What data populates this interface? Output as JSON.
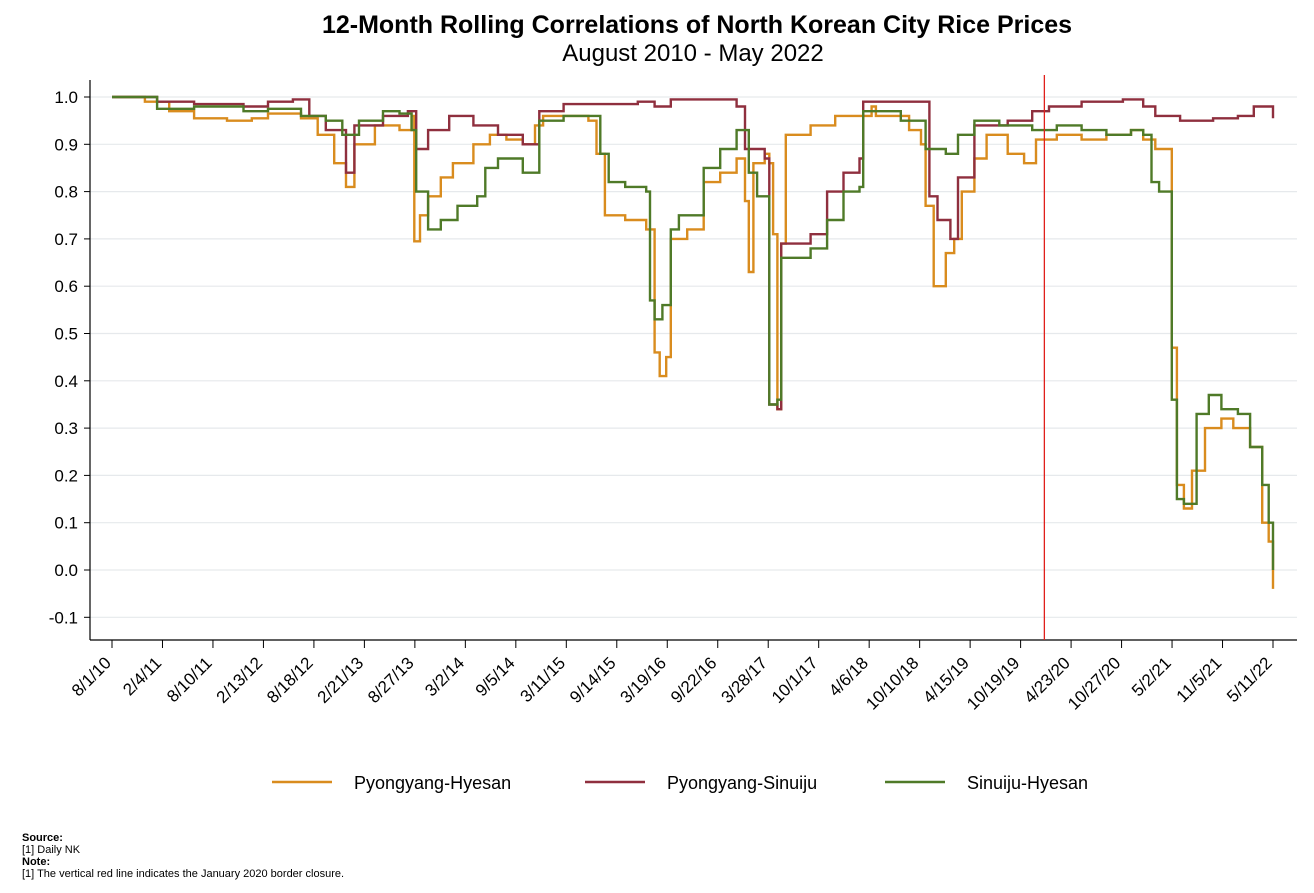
{
  "chart_data": {
    "type": "line",
    "title": "12-Month Rolling Correlations of North Korean City Rice Prices",
    "subtitle": "August 2010 - May 2022",
    "ylim": [
      -0.15,
      1.05
    ],
    "y_ticks": [
      "1.0",
      "0.9",
      "0.8",
      "0.7",
      "0.6",
      "0.5",
      "0.4",
      "0.3",
      "0.2",
      "0.1",
      "0.0",
      "-0.1"
    ],
    "y_tick_values": [
      1.0,
      0.9,
      0.8,
      0.7,
      0.6,
      0.5,
      0.4,
      0.3,
      0.2,
      0.1,
      0.0,
      -0.1
    ],
    "x_range": [
      "2010-07-15",
      "2022-07-01"
    ],
    "x_tick_labels": [
      "8/1/10",
      "2/4/11",
      "8/10/11",
      "2/13/12",
      "8/18/12",
      "2/21/13",
      "8/27/13",
      "3/2/14",
      "9/5/14",
      "3/11/15",
      "9/14/15",
      "3/19/16",
      "9/22/16",
      "3/28/17",
      "10/1/17",
      "4/6/18",
      "10/10/18",
      "4/15/19",
      "10/19/19",
      "4/23/20",
      "10/27/20",
      "5/2/21",
      "11/5/21",
      "5/11/22"
    ],
    "x_tick_dates": [
      "2010-08-01",
      "2011-02-04",
      "2011-08-10",
      "2012-02-13",
      "2012-08-18",
      "2013-02-21",
      "2013-08-27",
      "2014-03-02",
      "2014-09-05",
      "2015-03-11",
      "2015-09-14",
      "2016-03-19",
      "2016-09-22",
      "2017-03-28",
      "2017-10-01",
      "2018-04-06",
      "2018-10-10",
      "2019-04-15",
      "2019-10-19",
      "2020-04-23",
      "2020-10-27",
      "2021-05-02",
      "2021-11-05",
      "2022-05-11"
    ],
    "grid": true,
    "legend_position": "bottom",
    "vline": {
      "date": "2020-01-15",
      "color": "#e0201b"
    },
    "series": [
      {
        "name": "Pyongyang-Hyesan",
        "color": "#d98c1e",
        "points": [
          [
            "2010-08-01",
            1.0
          ],
          [
            "2010-12-01",
            0.99
          ],
          [
            "2011-03-01",
            0.97
          ],
          [
            "2011-06-01",
            0.955
          ],
          [
            "2011-10-01",
            0.95
          ],
          [
            "2012-01-01",
            0.955
          ],
          [
            "2012-03-01",
            0.965
          ],
          [
            "2012-07-01",
            0.955
          ],
          [
            "2012-09-01",
            0.92
          ],
          [
            "2012-11-01",
            0.86
          ],
          [
            "2012-12-15",
            0.81
          ],
          [
            "2013-01-15",
            0.9
          ],
          [
            "2013-04-01",
            0.94
          ],
          [
            "2013-07-01",
            0.93
          ],
          [
            "2013-08-15",
            0.96
          ],
          [
            "2013-08-25",
            0.695
          ],
          [
            "2013-09-15",
            0.75
          ],
          [
            "2013-10-15",
            0.79
          ],
          [
            "2013-12-01",
            0.83
          ],
          [
            "2014-01-15",
            0.86
          ],
          [
            "2014-04-01",
            0.9
          ],
          [
            "2014-06-01",
            0.92
          ],
          [
            "2014-08-01",
            0.91
          ],
          [
            "2014-10-01",
            0.9
          ],
          [
            "2014-11-15",
            0.94
          ],
          [
            "2014-12-15",
            0.96
          ],
          [
            "2015-03-01",
            0.96
          ],
          [
            "2015-06-01",
            0.95
          ],
          [
            "2015-07-01",
            0.88
          ],
          [
            "2015-08-01",
            0.75
          ],
          [
            "2015-10-15",
            0.74
          ],
          [
            "2016-01-01",
            0.72
          ],
          [
            "2016-02-01",
            0.46
          ],
          [
            "2016-02-20",
            0.41
          ],
          [
            "2016-03-15",
            0.45
          ],
          [
            "2016-04-01",
            0.7
          ],
          [
            "2016-06-01",
            0.72
          ],
          [
            "2016-08-01",
            0.82
          ],
          [
            "2016-10-01",
            0.84
          ],
          [
            "2016-12-01",
            0.87
          ],
          [
            "2017-01-01",
            0.78
          ],
          [
            "2017-01-15",
            0.63
          ],
          [
            "2017-02-01",
            0.86
          ],
          [
            "2017-03-15",
            0.88
          ],
          [
            "2017-04-01",
            0.86
          ],
          [
            "2017-04-15",
            0.71
          ],
          [
            "2017-05-01",
            0.34
          ],
          [
            "2017-05-15",
            0.69
          ],
          [
            "2017-06-01",
            0.92
          ],
          [
            "2017-09-01",
            0.94
          ],
          [
            "2017-12-01",
            0.96
          ],
          [
            "2018-04-15",
            0.98
          ],
          [
            "2018-05-01",
            0.96
          ],
          [
            "2018-09-01",
            0.93
          ],
          [
            "2018-10-15",
            0.9
          ],
          [
            "2018-11-01",
            0.77
          ],
          [
            "2018-12-01",
            0.6
          ],
          [
            "2019-01-15",
            0.67
          ],
          [
            "2019-02-15",
            0.7
          ],
          [
            "2019-03-15",
            0.8
          ],
          [
            "2019-05-01",
            0.87
          ],
          [
            "2019-06-15",
            0.92
          ],
          [
            "2019-09-01",
            0.88
          ],
          [
            "2019-11-01",
            0.86
          ],
          [
            "2019-12-15",
            0.91
          ],
          [
            "2020-03-01",
            0.92
          ],
          [
            "2020-06-01",
            0.91
          ],
          [
            "2020-09-01",
            0.92
          ],
          [
            "2020-12-01",
            0.93
          ],
          [
            "2021-01-15",
            0.91
          ],
          [
            "2021-03-01",
            0.89
          ],
          [
            "2021-04-15",
            0.89
          ],
          [
            "2021-05-01",
            0.47
          ],
          [
            "2021-05-20",
            0.18
          ],
          [
            "2021-06-15",
            0.13
          ],
          [
            "2021-07-15",
            0.21
          ],
          [
            "2021-09-01",
            0.3
          ],
          [
            "2021-11-01",
            0.32
          ],
          [
            "2021-12-15",
            0.3
          ],
          [
            "2022-02-15",
            0.26
          ],
          [
            "2022-04-01",
            0.1
          ],
          [
            "2022-04-25",
            0.06
          ],
          [
            "2022-05-11",
            -0.04
          ]
        ]
      },
      {
        "name": "Pyongyang-Sinuiju",
        "color": "#8f2f3e",
        "points": [
          [
            "2010-08-01",
            1.0
          ],
          [
            "2011-01-15",
            0.99
          ],
          [
            "2011-06-01",
            0.985
          ],
          [
            "2011-12-01",
            0.98
          ],
          [
            "2012-03-01",
            0.99
          ],
          [
            "2012-06-01",
            0.995
          ],
          [
            "2012-08-01",
            0.96
          ],
          [
            "2012-10-01",
            0.93
          ],
          [
            "2012-12-15",
            0.84
          ],
          [
            "2013-01-15",
            0.94
          ],
          [
            "2013-05-01",
            0.96
          ],
          [
            "2013-08-01",
            0.97
          ],
          [
            "2013-09-01",
            0.89
          ],
          [
            "2013-10-15",
            0.93
          ],
          [
            "2014-01-01",
            0.96
          ],
          [
            "2014-04-01",
            0.94
          ],
          [
            "2014-07-01",
            0.92
          ],
          [
            "2014-10-01",
            0.9
          ],
          [
            "2014-12-01",
            0.97
          ],
          [
            "2015-03-01",
            0.985
          ],
          [
            "2015-09-01",
            0.985
          ],
          [
            "2015-12-01",
            0.99
          ],
          [
            "2016-02-01",
            0.98
          ],
          [
            "2016-04-01",
            0.995
          ],
          [
            "2016-08-01",
            0.995
          ],
          [
            "2016-12-01",
            0.98
          ],
          [
            "2017-01-01",
            0.89
          ],
          [
            "2017-03-15",
            0.87
          ],
          [
            "2017-04-01",
            0.35
          ],
          [
            "2017-05-01",
            0.34
          ],
          [
            "2017-05-15",
            0.69
          ],
          [
            "2017-09-01",
            0.71
          ],
          [
            "2017-11-01",
            0.8
          ],
          [
            "2018-01-01",
            0.84
          ],
          [
            "2018-03-01",
            0.87
          ],
          [
            "2018-03-15",
            0.99
          ],
          [
            "2018-08-01",
            0.99
          ],
          [
            "2018-11-01",
            0.99
          ],
          [
            "2018-11-15",
            0.79
          ],
          [
            "2018-12-15",
            0.74
          ],
          [
            "2019-02-01",
            0.7
          ],
          [
            "2019-03-01",
            0.83
          ],
          [
            "2019-05-01",
            0.94
          ],
          [
            "2019-09-01",
            0.95
          ],
          [
            "2019-12-01",
            0.97
          ],
          [
            "2020-02-01",
            0.98
          ],
          [
            "2020-06-01",
            0.99
          ],
          [
            "2020-11-01",
            0.995
          ],
          [
            "2021-01-15",
            0.98
          ],
          [
            "2021-03-01",
            0.96
          ],
          [
            "2021-06-01",
            0.95
          ],
          [
            "2021-10-01",
            0.955
          ],
          [
            "2022-01-01",
            0.96
          ],
          [
            "2022-03-01",
            0.98
          ],
          [
            "2022-05-11",
            0.955
          ]
        ]
      },
      {
        "name": "Sinuiju-Hyesan",
        "color": "#4f7a28",
        "points": [
          [
            "2010-08-01",
            1.0
          ],
          [
            "2011-01-15",
            0.975
          ],
          [
            "2011-06-01",
            0.98
          ],
          [
            "2011-12-01",
            0.97
          ],
          [
            "2012-03-01",
            0.975
          ],
          [
            "2012-07-01",
            0.96
          ],
          [
            "2012-10-01",
            0.95
          ],
          [
            "2012-12-01",
            0.92
          ],
          [
            "2013-02-01",
            0.95
          ],
          [
            "2013-05-01",
            0.97
          ],
          [
            "2013-07-01",
            0.965
          ],
          [
            "2013-08-15",
            0.93
          ],
          [
            "2013-09-01",
            0.8
          ],
          [
            "2013-10-15",
            0.72
          ],
          [
            "2013-12-01",
            0.74
          ],
          [
            "2014-02-01",
            0.77
          ],
          [
            "2014-04-15",
            0.79
          ],
          [
            "2014-05-15",
            0.85
          ],
          [
            "2014-07-01",
            0.87
          ],
          [
            "2014-10-01",
            0.84
          ],
          [
            "2014-12-01",
            0.95
          ],
          [
            "2015-03-01",
            0.96
          ],
          [
            "2015-06-01",
            0.96
          ],
          [
            "2015-07-15",
            0.88
          ],
          [
            "2015-08-15",
            0.82
          ],
          [
            "2015-10-15",
            0.81
          ],
          [
            "2016-01-01",
            0.8
          ],
          [
            "2016-01-15",
            0.57
          ],
          [
            "2016-02-01",
            0.53
          ],
          [
            "2016-03-01",
            0.56
          ],
          [
            "2016-04-01",
            0.72
          ],
          [
            "2016-05-01",
            0.75
          ],
          [
            "2016-08-01",
            0.85
          ],
          [
            "2016-10-01",
            0.89
          ],
          [
            "2016-12-01",
            0.93
          ],
          [
            "2017-01-15",
            0.84
          ],
          [
            "2017-02-15",
            0.79
          ],
          [
            "2017-04-01",
            0.35
          ],
          [
            "2017-05-01",
            0.36
          ],
          [
            "2017-05-15",
            0.66
          ],
          [
            "2017-09-01",
            0.68
          ],
          [
            "2017-11-01",
            0.74
          ],
          [
            "2018-01-01",
            0.8
          ],
          [
            "2018-03-01",
            0.81
          ],
          [
            "2018-03-15",
            0.97
          ],
          [
            "2018-08-01",
            0.95
          ],
          [
            "2018-10-15",
            0.95
          ],
          [
            "2018-11-01",
            0.89
          ],
          [
            "2019-01-15",
            0.88
          ],
          [
            "2019-03-01",
            0.92
          ],
          [
            "2019-05-01",
            0.95
          ],
          [
            "2019-08-01",
            0.94
          ],
          [
            "2019-12-01",
            0.93
          ],
          [
            "2020-03-01",
            0.94
          ],
          [
            "2020-06-01",
            0.93
          ],
          [
            "2020-09-01",
            0.92
          ],
          [
            "2020-12-01",
            0.93
          ],
          [
            "2021-01-15",
            0.92
          ],
          [
            "2021-02-15",
            0.82
          ],
          [
            "2021-03-15",
            0.8
          ],
          [
            "2021-04-15",
            0.8
          ],
          [
            "2021-05-01",
            0.36
          ],
          [
            "2021-05-20",
            0.15
          ],
          [
            "2021-06-15",
            0.14
          ],
          [
            "2021-08-01",
            0.33
          ],
          [
            "2021-09-15",
            0.37
          ],
          [
            "2021-11-01",
            0.34
          ],
          [
            "2022-01-01",
            0.33
          ],
          [
            "2022-02-15",
            0.26
          ],
          [
            "2022-04-01",
            0.18
          ],
          [
            "2022-04-25",
            0.1
          ],
          [
            "2022-05-11",
            0.0
          ]
        ]
      }
    ]
  },
  "footer": {
    "source_label": "Source:",
    "source_text": "[1] Daily NK",
    "note_label": "Note:",
    "note_text": "[1] The vertical red line indicates the January 2020 border closure."
  }
}
